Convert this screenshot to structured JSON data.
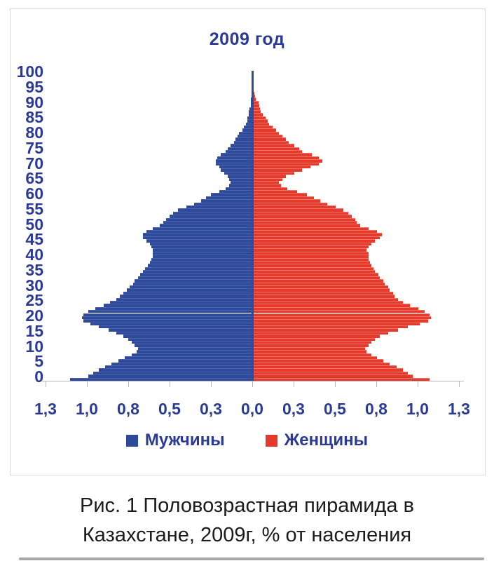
{
  "title": "2009 год",
  "legend": {
    "male": "Мужчины",
    "female": "Женщины"
  },
  "caption": {
    "line1": "Рис. 1 Половозрастная пирамида в",
    "line2": "Казахстане, 2009г, % от населения"
  },
  "colors": {
    "male_bar": "#2e4a9b",
    "female_bar": "#e5392b",
    "navy_text": "#2b3a94",
    "axis_gray": "#b7b7c0",
    "frame_gray": "#d9d9de",
    "caption_text": "#1b1b1b"
  },
  "axes": {
    "age_tick_labels": [
      100,
      95,
      90,
      85,
      80,
      75,
      70,
      65,
      60,
      55,
      50,
      45,
      40,
      35,
      30,
      25,
      20,
      15,
      10,
      5,
      0
    ],
    "x_tick_labels": [
      "1,3",
      "1,0",
      "0,8",
      "0,5",
      "0,3",
      "0,0",
      "0,3",
      "0,5",
      "0,8",
      "1,0",
      "1,3"
    ]
  },
  "chart_data": {
    "type": "bar",
    "subtype": "population-pyramid",
    "title": "2009 год",
    "age_range": [
      0,
      100
    ],
    "x_axis_unit_per_tick": 0.25,
    "xlim_abs": [
      0,
      1.25
    ],
    "legend_position": "bottom",
    "grid": false,
    "series": [
      {
        "name": "Мужчины",
        "side": "left",
        "color": "#2e4a9b",
        "values": [
          1.1,
          0.99,
          0.96,
          0.93,
          0.89,
          0.85,
          0.81,
          0.77,
          0.73,
          0.7,
          0.69,
          0.71,
          0.73,
          0.75,
          0.78,
          0.82,
          0.87,
          0.93,
          0.98,
          1.02,
          1.03,
          1.02,
          0.99,
          0.95,
          0.9,
          0.86,
          0.82,
          0.8,
          0.78,
          0.76,
          0.74,
          0.72,
          0.71,
          0.69,
          0.68,
          0.66,
          0.65,
          0.63,
          0.62,
          0.61,
          0.6,
          0.6,
          0.6,
          0.61,
          0.62,
          0.64,
          0.66,
          0.66,
          0.64,
          0.6,
          0.56,
          0.54,
          0.52,
          0.5,
          0.48,
          0.45,
          0.4,
          0.35,
          0.31,
          0.28,
          0.25,
          0.2,
          0.16,
          0.14,
          0.13,
          0.14,
          0.15,
          0.17,
          0.19,
          0.2,
          0.22,
          0.22,
          0.21,
          0.19,
          0.16,
          0.15,
          0.13,
          0.11,
          0.1,
          0.09,
          0.08,
          0.06,
          0.05,
          0.04,
          0.03,
          0.03,
          0.02,
          0.02,
          0.015,
          0.01,
          0.01,
          0.008,
          0.006,
          0.005,
          0.004,
          0.003,
          0.002,
          0.002,
          0.001,
          0.001,
          0.001
        ]
      },
      {
        "name": "Женщины",
        "side": "right",
        "color": "#e5392b",
        "values": [
          1.07,
          0.97,
          0.94,
          0.91,
          0.87,
          0.83,
          0.79,
          0.75,
          0.72,
          0.69,
          0.68,
          0.7,
          0.72,
          0.74,
          0.77,
          0.82,
          0.88,
          0.94,
          1.01,
          1.06,
          1.08,
          1.07,
          1.04,
          1.0,
          0.95,
          0.91,
          0.88,
          0.86,
          0.85,
          0.83,
          0.82,
          0.8,
          0.79,
          0.77,
          0.76,
          0.74,
          0.73,
          0.72,
          0.71,
          0.7,
          0.7,
          0.7,
          0.69,
          0.7,
          0.72,
          0.74,
          0.77,
          0.78,
          0.75,
          0.7,
          0.65,
          0.63,
          0.62,
          0.6,
          0.58,
          0.55,
          0.5,
          0.45,
          0.41,
          0.37,
          0.33,
          0.27,
          0.21,
          0.17,
          0.16,
          0.18,
          0.2,
          0.25,
          0.3,
          0.35,
          0.4,
          0.42,
          0.4,
          0.36,
          0.3,
          0.28,
          0.25,
          0.22,
          0.2,
          0.18,
          0.16,
          0.14,
          0.12,
          0.1,
          0.09,
          0.08,
          0.06,
          0.05,
          0.045,
          0.04,
          0.035,
          0.02,
          0.015,
          0.01,
          0.008,
          0.006,
          0.004,
          0.003,
          0.002,
          0.002,
          0.001
        ]
      }
    ]
  }
}
